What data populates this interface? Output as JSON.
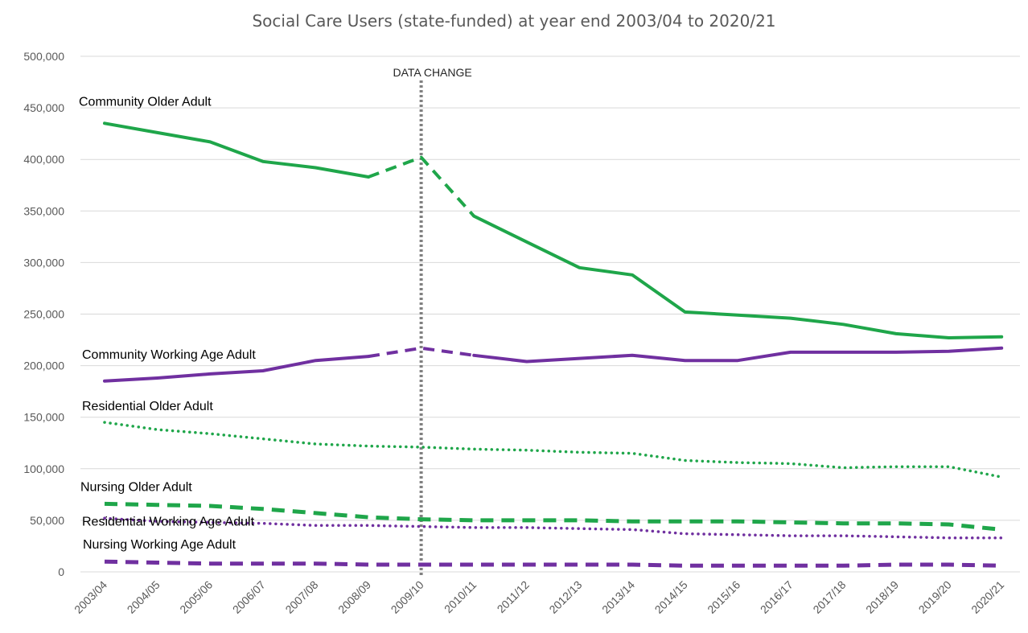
{
  "chart_data": {
    "type": "line",
    "title": "Social Care Users (state-funded) at year end 2003/04 to 2020/21",
    "xlabel": "",
    "ylabel": "",
    "ylim": [
      0,
      500000
    ],
    "yticks": [
      0,
      50000,
      100000,
      150000,
      200000,
      250000,
      300000,
      350000,
      400000,
      450000,
      500000
    ],
    "ytick_labels": [
      "0",
      "50,000",
      "100,000",
      "150,000",
      "200,000",
      "250,000",
      "300,000",
      "350,000",
      "400,000",
      "450,000",
      "500,000"
    ],
    "grid": true,
    "legend": "none",
    "categories": [
      "2003/04",
      "2004/05",
      "2005/06",
      "2006/07",
      "2007/08",
      "2008/09",
      "2009/10",
      "2010/11",
      "2011/12",
      "2012/13",
      "2013/14",
      "2014/15",
      "2015/16",
      "2016/17",
      "2017/18",
      "2018/19",
      "2019/20",
      "2020/21"
    ],
    "annotation": {
      "label": "DATA CHANGE",
      "category": "2009/10"
    },
    "series": [
      {
        "name": "Community Older Adult",
        "color": "#1fa64a",
        "style": "solid",
        "values": [
          435000,
          426000,
          417000,
          398000,
          392000,
          383000,
          402000,
          345000,
          320000,
          295000,
          288000,
          252000,
          249000,
          246000,
          240000,
          231000,
          227000,
          228000
        ]
      },
      {
        "name": "Community Working Age Adult",
        "color": "#7030a0",
        "style": "solid",
        "values": [
          185000,
          188000,
          192000,
          195000,
          205000,
          209000,
          217000,
          210000,
          204000,
          207000,
          210000,
          205000,
          205000,
          213000,
          213000,
          213000,
          214000,
          217000
        ]
      },
      {
        "name": "Residential Older Adult",
        "color": "#1fa64a",
        "style": "dotted",
        "values": [
          145000,
          138000,
          134000,
          129000,
          124000,
          122000,
          121000,
          119000,
          118000,
          116000,
          115000,
          108000,
          106000,
          105000,
          101000,
          102000,
          102000,
          92000
        ]
      },
      {
        "name": "Nursing Older Adult",
        "color": "#1fa64a",
        "style": "dashed",
        "values": [
          66000,
          65000,
          64000,
          61000,
          57000,
          53000,
          51000,
          50000,
          50000,
          50000,
          49000,
          49000,
          49000,
          48000,
          47000,
          47000,
          46000,
          41000
        ]
      },
      {
        "name": "Residential Working Age Adult",
        "color": "#7030a0",
        "style": "dotted",
        "values": [
          52000,
          49000,
          48000,
          47000,
          45000,
          45000,
          44000,
          43000,
          43000,
          42000,
          41000,
          37000,
          36000,
          35000,
          35000,
          34000,
          33000,
          33000
        ]
      },
      {
        "name": "Nursing Working Age Adult",
        "color": "#7030a0",
        "style": "dashed",
        "values": [
          10000,
          9000,
          8000,
          8000,
          8000,
          7000,
          7000,
          7000,
          7000,
          7000,
          7000,
          6000,
          6000,
          6000,
          6000,
          7000,
          7000,
          6000
        ]
      }
    ]
  }
}
